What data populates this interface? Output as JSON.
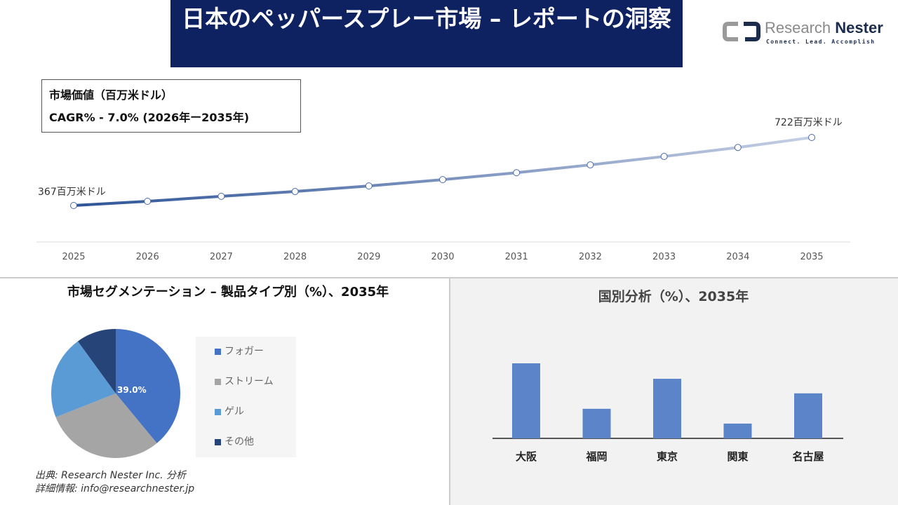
{
  "header": {
    "title": "日本のペッパースプレー市場 – レポートの洞察"
  },
  "logo": {
    "name_light": "Research",
    "name_bold": "Nester",
    "tagline": "Connect. Lead. Accomplish"
  },
  "infobox": {
    "line1": "市場価値（百万米ドル）",
    "line2": "CAGR% - 7.0% (2026年ー2035年)"
  },
  "colors": {
    "header_bg": "#0e2160",
    "line_start": "#2f5597",
    "line_end": "#c5cfe4",
    "bar": "#5b84c9"
  },
  "chart_data": [
    {
      "type": "line",
      "x": [
        "2025",
        "2026",
        "2027",
        "2028",
        "2029",
        "2030",
        "2031",
        "2032",
        "2033",
        "2034",
        "2035"
      ],
      "values": [
        367,
        389,
        415,
        440,
        469,
        502,
        538,
        579,
        623,
        670,
        722
      ],
      "annotations": {
        "first": "367百万米ドル",
        "last": "722百万米ドル"
      },
      "grid": false
    },
    {
      "type": "pie",
      "title": "市場セグメンテーション – 製品タイプ別（%）、2035年",
      "categories": [
        "フォガー",
        "ストリーム",
        "ゲル",
        "その他"
      ],
      "values": [
        39.0,
        30.0,
        21.0,
        10.0
      ],
      "colors": [
        "#4472c4",
        "#a5a5a5",
        "#5b9bd5",
        "#264478"
      ],
      "data_label": "39.0%",
      "legend": "right"
    },
    {
      "type": "bar",
      "title": "国別分析（%）、2035年",
      "categories": [
        "大阪",
        "福岡",
        "東京",
        "関東",
        "名古屋"
      ],
      "values": [
        33.5,
        13.2,
        26.6,
        6.6,
        20.1
      ]
    }
  ],
  "footer": {
    "source": "出典: Research Nester Inc. 分析",
    "contact": "詳細情報: info@researchnester.jp"
  }
}
